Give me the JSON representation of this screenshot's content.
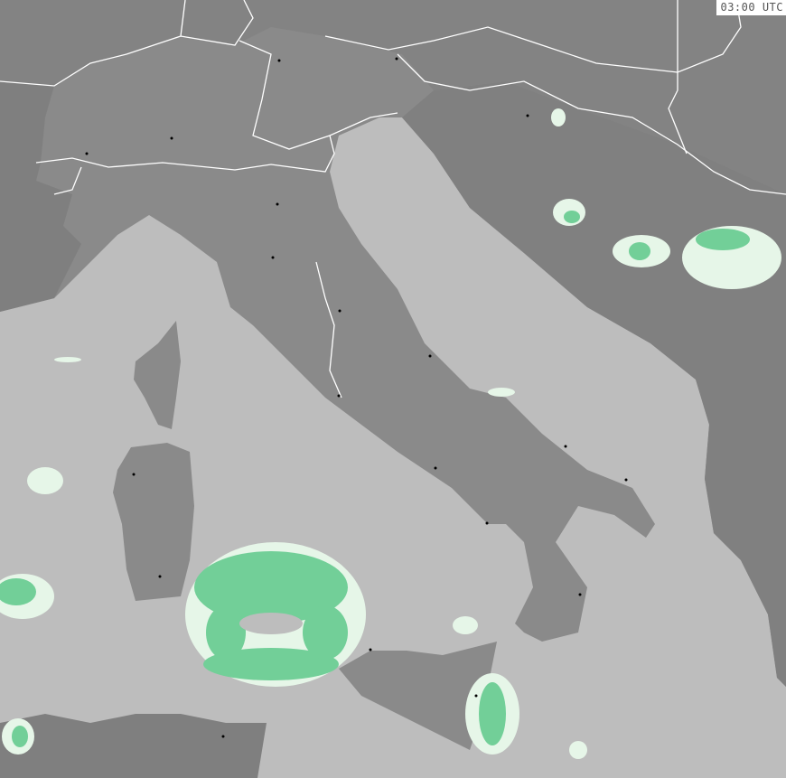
{
  "map": {
    "timestamp": "03:00 UTC",
    "colors": {
      "sea": "#bdbdbd",
      "land": "#8a8a8a",
      "foreign_land": "#808080",
      "border": "#ffffff",
      "precip_light": "#e6f6e8",
      "precip_moderate": "#72cf98",
      "city_marker": "#000000"
    }
  }
}
